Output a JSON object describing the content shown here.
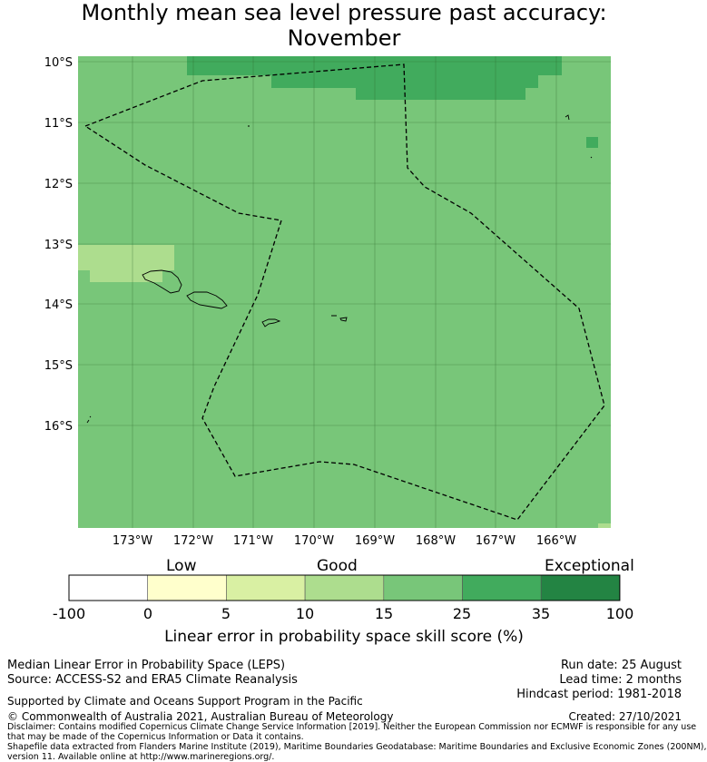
{
  "title": {
    "line1": "Monthly mean sea level pressure past accuracy:",
    "line2": "November"
  },
  "map": {
    "lat_ticks": [
      "10°S",
      "11°S",
      "12°S",
      "13°S",
      "14°S",
      "15°S",
      "16°S"
    ],
    "lon_ticks": [
      "173°W",
      "172°W",
      "171°W",
      "170°W",
      "169°W",
      "168°W",
      "167°W",
      "166°W"
    ],
    "background_color": "#78c679",
    "gridlines": true
  },
  "colorbar": {
    "category_labels": [
      "Low",
      "Good",
      "Exceptional"
    ],
    "ticks": [
      "-100",
      "0",
      "5",
      "10",
      "15",
      "25",
      "35",
      "100"
    ],
    "colors": [
      "#ffffff",
      "#ffffcc",
      "#d9f0a3",
      "#addd8e",
      "#78c679",
      "#41ab5d",
      "#238443"
    ],
    "label": "Linear error in probability space skill score (%)"
  },
  "footer": {
    "left_line1": "Median Linear Error in Probability Space (LEPS)",
    "left_line2": "Source: ACCESS-S2 and ERA5 Climate Reanalysis",
    "right_line1": "Run date: 25 August",
    "right_line2": "Lead time: 2 months",
    "right_line3": "Hindcast period: 1981-2018",
    "support": "Supported by Climate and Oceans Support Program in the Pacific",
    "copyright": "© Commonwealth of Australia 2021, Australian Bureau of Meteorology",
    "created": "Created: 27/10/2021",
    "disclaimer1": "Disclaimer: Contains modified Copernicus Climate Change Service Information [2019]. Neither the European Commission nor ECMWF is responsible for any use",
    "disclaimer2": "that may be made of the Copernicus Information or Data it contains.",
    "shapefile1": "Shapefile data extracted from Flanders Marine Institute (2019), Maritime Boundaries Geodatabase: Maritime Boundaries and Exclusive Economic Zones (200NM),",
    "shapefile2": "version 11. Available online at http://www.marineregions.org/."
  }
}
